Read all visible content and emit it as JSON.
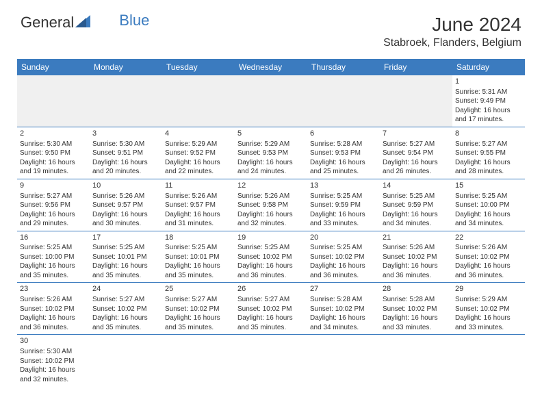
{
  "logo": {
    "general": "General",
    "blue": "Blue"
  },
  "title": "June 2024",
  "location": "Stabroek, Flanders, Belgium",
  "colors": {
    "header_bg": "#3b7bbf",
    "header_fg": "#ffffff",
    "border": "#3b7bbf",
    "empty_bg": "#f0f0f0",
    "text": "#333333"
  },
  "day_headers": [
    "Sunday",
    "Monday",
    "Tuesday",
    "Wednesday",
    "Thursday",
    "Friday",
    "Saturday"
  ],
  "weeks": [
    [
      null,
      null,
      null,
      null,
      null,
      null,
      {
        "num": "1",
        "sunrise": "Sunrise: 5:31 AM",
        "sunset": "Sunset: 9:49 PM",
        "daylight1": "Daylight: 16 hours",
        "daylight2": "and 17 minutes."
      }
    ],
    [
      {
        "num": "2",
        "sunrise": "Sunrise: 5:30 AM",
        "sunset": "Sunset: 9:50 PM",
        "daylight1": "Daylight: 16 hours",
        "daylight2": "and 19 minutes."
      },
      {
        "num": "3",
        "sunrise": "Sunrise: 5:30 AM",
        "sunset": "Sunset: 9:51 PM",
        "daylight1": "Daylight: 16 hours",
        "daylight2": "and 20 minutes."
      },
      {
        "num": "4",
        "sunrise": "Sunrise: 5:29 AM",
        "sunset": "Sunset: 9:52 PM",
        "daylight1": "Daylight: 16 hours",
        "daylight2": "and 22 minutes."
      },
      {
        "num": "5",
        "sunrise": "Sunrise: 5:29 AM",
        "sunset": "Sunset: 9:53 PM",
        "daylight1": "Daylight: 16 hours",
        "daylight2": "and 24 minutes."
      },
      {
        "num": "6",
        "sunrise": "Sunrise: 5:28 AM",
        "sunset": "Sunset: 9:53 PM",
        "daylight1": "Daylight: 16 hours",
        "daylight2": "and 25 minutes."
      },
      {
        "num": "7",
        "sunrise": "Sunrise: 5:27 AM",
        "sunset": "Sunset: 9:54 PM",
        "daylight1": "Daylight: 16 hours",
        "daylight2": "and 26 minutes."
      },
      {
        "num": "8",
        "sunrise": "Sunrise: 5:27 AM",
        "sunset": "Sunset: 9:55 PM",
        "daylight1": "Daylight: 16 hours",
        "daylight2": "and 28 minutes."
      }
    ],
    [
      {
        "num": "9",
        "sunrise": "Sunrise: 5:27 AM",
        "sunset": "Sunset: 9:56 PM",
        "daylight1": "Daylight: 16 hours",
        "daylight2": "and 29 minutes."
      },
      {
        "num": "10",
        "sunrise": "Sunrise: 5:26 AM",
        "sunset": "Sunset: 9:57 PM",
        "daylight1": "Daylight: 16 hours",
        "daylight2": "and 30 minutes."
      },
      {
        "num": "11",
        "sunrise": "Sunrise: 5:26 AM",
        "sunset": "Sunset: 9:57 PM",
        "daylight1": "Daylight: 16 hours",
        "daylight2": "and 31 minutes."
      },
      {
        "num": "12",
        "sunrise": "Sunrise: 5:26 AM",
        "sunset": "Sunset: 9:58 PM",
        "daylight1": "Daylight: 16 hours",
        "daylight2": "and 32 minutes."
      },
      {
        "num": "13",
        "sunrise": "Sunrise: 5:25 AM",
        "sunset": "Sunset: 9:59 PM",
        "daylight1": "Daylight: 16 hours",
        "daylight2": "and 33 minutes."
      },
      {
        "num": "14",
        "sunrise": "Sunrise: 5:25 AM",
        "sunset": "Sunset: 9:59 PM",
        "daylight1": "Daylight: 16 hours",
        "daylight2": "and 34 minutes."
      },
      {
        "num": "15",
        "sunrise": "Sunrise: 5:25 AM",
        "sunset": "Sunset: 10:00 PM",
        "daylight1": "Daylight: 16 hours",
        "daylight2": "and 34 minutes."
      }
    ],
    [
      {
        "num": "16",
        "sunrise": "Sunrise: 5:25 AM",
        "sunset": "Sunset: 10:00 PM",
        "daylight1": "Daylight: 16 hours",
        "daylight2": "and 35 minutes."
      },
      {
        "num": "17",
        "sunrise": "Sunrise: 5:25 AM",
        "sunset": "Sunset: 10:01 PM",
        "daylight1": "Daylight: 16 hours",
        "daylight2": "and 35 minutes."
      },
      {
        "num": "18",
        "sunrise": "Sunrise: 5:25 AM",
        "sunset": "Sunset: 10:01 PM",
        "daylight1": "Daylight: 16 hours",
        "daylight2": "and 35 minutes."
      },
      {
        "num": "19",
        "sunrise": "Sunrise: 5:25 AM",
        "sunset": "Sunset: 10:02 PM",
        "daylight1": "Daylight: 16 hours",
        "daylight2": "and 36 minutes."
      },
      {
        "num": "20",
        "sunrise": "Sunrise: 5:25 AM",
        "sunset": "Sunset: 10:02 PM",
        "daylight1": "Daylight: 16 hours",
        "daylight2": "and 36 minutes."
      },
      {
        "num": "21",
        "sunrise": "Sunrise: 5:26 AM",
        "sunset": "Sunset: 10:02 PM",
        "daylight1": "Daylight: 16 hours",
        "daylight2": "and 36 minutes."
      },
      {
        "num": "22",
        "sunrise": "Sunrise: 5:26 AM",
        "sunset": "Sunset: 10:02 PM",
        "daylight1": "Daylight: 16 hours",
        "daylight2": "and 36 minutes."
      }
    ],
    [
      {
        "num": "23",
        "sunrise": "Sunrise: 5:26 AM",
        "sunset": "Sunset: 10:02 PM",
        "daylight1": "Daylight: 16 hours",
        "daylight2": "and 36 minutes."
      },
      {
        "num": "24",
        "sunrise": "Sunrise: 5:27 AM",
        "sunset": "Sunset: 10:02 PM",
        "daylight1": "Daylight: 16 hours",
        "daylight2": "and 35 minutes."
      },
      {
        "num": "25",
        "sunrise": "Sunrise: 5:27 AM",
        "sunset": "Sunset: 10:02 PM",
        "daylight1": "Daylight: 16 hours",
        "daylight2": "and 35 minutes."
      },
      {
        "num": "26",
        "sunrise": "Sunrise: 5:27 AM",
        "sunset": "Sunset: 10:02 PM",
        "daylight1": "Daylight: 16 hours",
        "daylight2": "and 35 minutes."
      },
      {
        "num": "27",
        "sunrise": "Sunrise: 5:28 AM",
        "sunset": "Sunset: 10:02 PM",
        "daylight1": "Daylight: 16 hours",
        "daylight2": "and 34 minutes."
      },
      {
        "num": "28",
        "sunrise": "Sunrise: 5:28 AM",
        "sunset": "Sunset: 10:02 PM",
        "daylight1": "Daylight: 16 hours",
        "daylight2": "and 33 minutes."
      },
      {
        "num": "29",
        "sunrise": "Sunrise: 5:29 AM",
        "sunset": "Sunset: 10:02 PM",
        "daylight1": "Daylight: 16 hours",
        "daylight2": "and 33 minutes."
      }
    ],
    [
      {
        "num": "30",
        "sunrise": "Sunrise: 5:30 AM",
        "sunset": "Sunset: 10:02 PM",
        "daylight1": "Daylight: 16 hours",
        "daylight2": "and 32 minutes."
      },
      null,
      null,
      null,
      null,
      null,
      null
    ]
  ]
}
